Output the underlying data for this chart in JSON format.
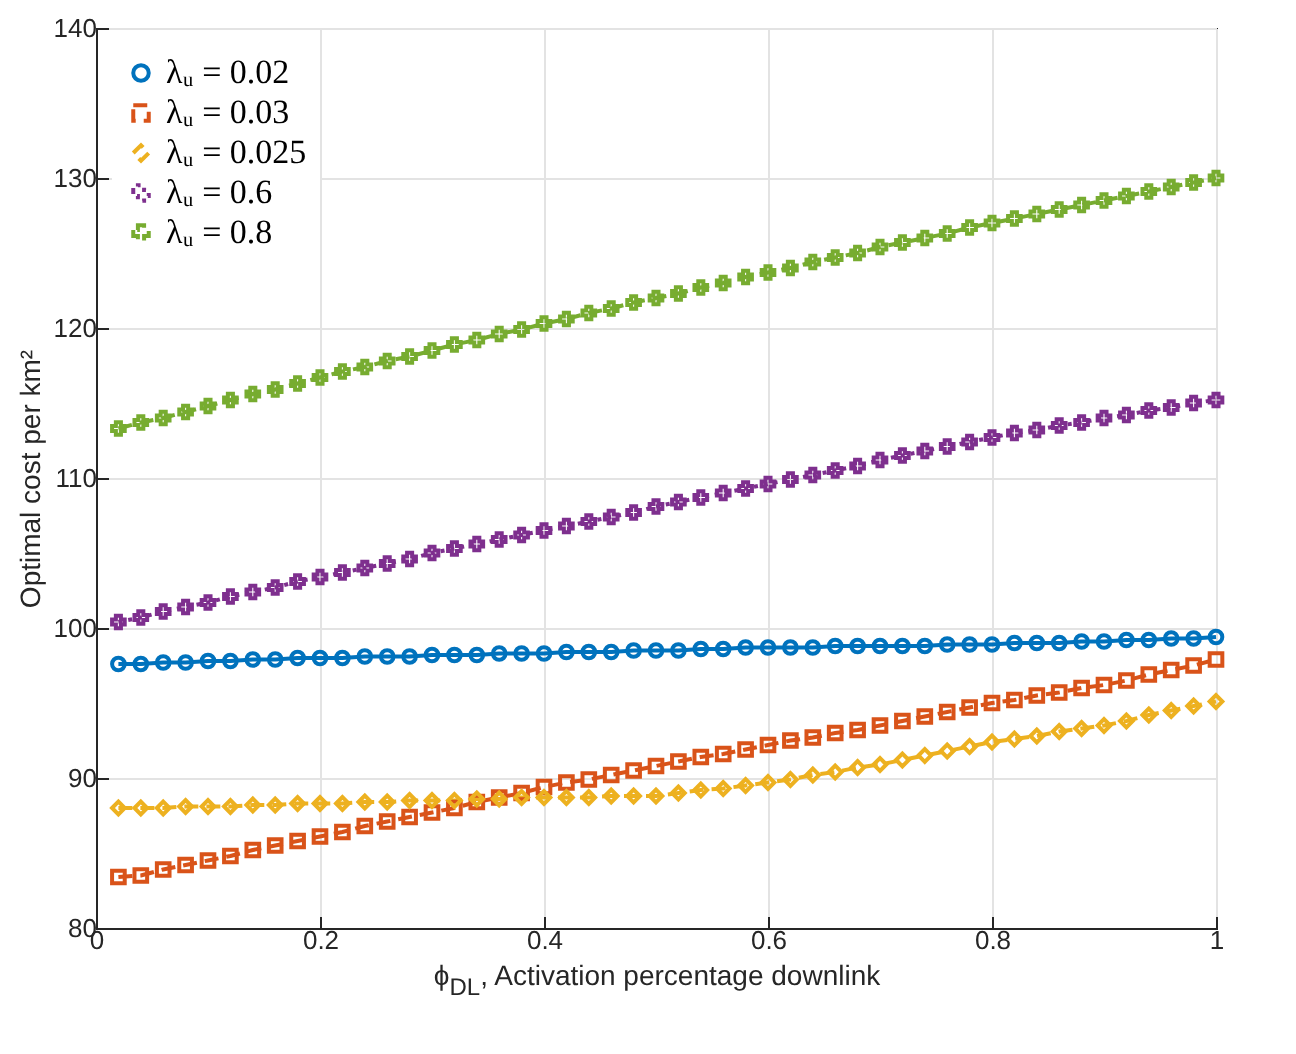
{
  "chart_data": {
    "type": "line",
    "xlabel": "ϕ$_{DL}$, Activation percentage downlink",
    "ylabel": "Optimal cost per km²",
    "x": [
      0.02,
      0.04,
      0.06,
      0.08,
      0.1,
      0.12,
      0.14,
      0.16,
      0.18,
      0.2,
      0.22,
      0.24,
      0.26,
      0.28,
      0.3,
      0.32,
      0.34,
      0.36,
      0.38,
      0.4,
      0.42,
      0.44,
      0.46,
      0.48,
      0.5,
      0.52,
      0.54,
      0.56,
      0.58,
      0.6,
      0.62,
      0.64,
      0.66,
      0.68,
      0.7,
      0.72,
      0.74,
      0.76,
      0.78,
      0.8,
      0.82,
      0.84,
      0.86,
      0.88,
      0.9,
      0.92,
      0.94,
      0.96,
      0.98,
      1.0
    ],
    "series": [
      {
        "name": "λᵤ = 0.02",
        "color": "#0072bd",
        "marker": "circle",
        "line_style": "solid",
        "values": [
          97.6,
          97.6,
          97.7,
          97.7,
          97.8,
          97.8,
          97.9,
          97.9,
          98.0,
          98.0,
          98.0,
          98.1,
          98.1,
          98.1,
          98.2,
          98.2,
          98.2,
          98.3,
          98.3,
          98.3,
          98.4,
          98.4,
          98.4,
          98.5,
          98.5,
          98.5,
          98.6,
          98.6,
          98.7,
          98.7,
          98.7,
          98.7,
          98.8,
          98.8,
          98.8,
          98.8,
          98.8,
          98.9,
          98.9,
          98.9,
          99.0,
          99.0,
          99.0,
          99.1,
          99.1,
          99.2,
          99.2,
          99.3,
          99.3,
          99.4
        ]
      },
      {
        "name": "λᵤ = 0.03",
        "color": "#d95319",
        "marker": "square",
        "line_style": "dashed",
        "values": [
          83.4,
          83.5,
          83.9,
          84.2,
          84.5,
          84.8,
          85.2,
          85.5,
          85.8,
          86.1,
          86.4,
          86.8,
          87.1,
          87.4,
          87.7,
          88.0,
          88.4,
          88.7,
          89.0,
          89.4,
          89.7,
          89.9,
          90.2,
          90.5,
          90.8,
          91.1,
          91.4,
          91.6,
          91.9,
          92.2,
          92.5,
          92.7,
          93.0,
          93.2,
          93.5,
          93.8,
          94.1,
          94.4,
          94.7,
          95.0,
          95.2,
          95.5,
          95.7,
          96.0,
          96.2,
          96.5,
          96.9,
          97.2,
          97.5,
          97.9
        ]
      },
      {
        "name": "λᵤ = 0.025",
        "color": "#edb120",
        "marker": "diamond",
        "line_style": "dashed",
        "values": [
          88.0,
          88.0,
          88.0,
          88.1,
          88.1,
          88.1,
          88.2,
          88.2,
          88.3,
          88.3,
          88.3,
          88.4,
          88.4,
          88.5,
          88.5,
          88.5,
          88.6,
          88.6,
          88.7,
          88.7,
          88.7,
          88.7,
          88.8,
          88.8,
          88.8,
          89.0,
          89.2,
          89.3,
          89.5,
          89.7,
          89.9,
          90.2,
          90.4,
          90.7,
          90.9,
          91.2,
          91.5,
          91.8,
          92.1,
          92.4,
          92.6,
          92.8,
          93.1,
          93.3,
          93.5,
          93.8,
          94.2,
          94.5,
          94.8,
          95.1
        ]
      },
      {
        "name": "λᵤ = 0.6",
        "color": "#7e2f8e",
        "marker": "cross",
        "line_style": "dotted",
        "values": [
          100.4,
          100.7,
          101.1,
          101.4,
          101.7,
          102.1,
          102.4,
          102.7,
          103.1,
          103.4,
          103.7,
          104.0,
          104.3,
          104.6,
          105.0,
          105.3,
          105.6,
          105.9,
          106.2,
          106.5,
          106.8,
          107.1,
          107.4,
          107.7,
          108.1,
          108.4,
          108.7,
          109.0,
          109.3,
          109.6,
          109.9,
          110.2,
          110.5,
          110.8,
          111.2,
          111.5,
          111.8,
          112.1,
          112.4,
          112.7,
          113.0,
          113.2,
          113.5,
          113.7,
          114.0,
          114.2,
          114.5,
          114.7,
          115.0,
          115.2
        ]
      },
      {
        "name": "λᵤ = 0.8",
        "color": "#77ac30",
        "marker": "cross",
        "line_style": "dashed",
        "values": [
          113.3,
          113.7,
          114.0,
          114.4,
          114.8,
          115.2,
          115.6,
          115.9,
          116.3,
          116.7,
          117.1,
          117.4,
          117.8,
          118.1,
          118.5,
          118.9,
          119.2,
          119.6,
          119.9,
          120.3,
          120.6,
          121.0,
          121.3,
          121.7,
          122.0,
          122.3,
          122.7,
          123.0,
          123.4,
          123.7,
          124.0,
          124.4,
          124.7,
          125.0,
          125.4,
          125.7,
          126.0,
          126.3,
          126.7,
          127.0,
          127.3,
          127.6,
          127.9,
          128.2,
          128.5,
          128.8,
          129.1,
          129.4,
          129.7,
          130.0
        ]
      }
    ],
    "xlim": [
      0,
      1
    ],
    "xticks": [
      0,
      0.2,
      0.4,
      0.6,
      0.8,
      1
    ],
    "ylim": [
      80,
      140
    ],
    "yticks": [
      80,
      90,
      100,
      110,
      120,
      130,
      140
    ],
    "grid": true,
    "legend": "top left"
  }
}
